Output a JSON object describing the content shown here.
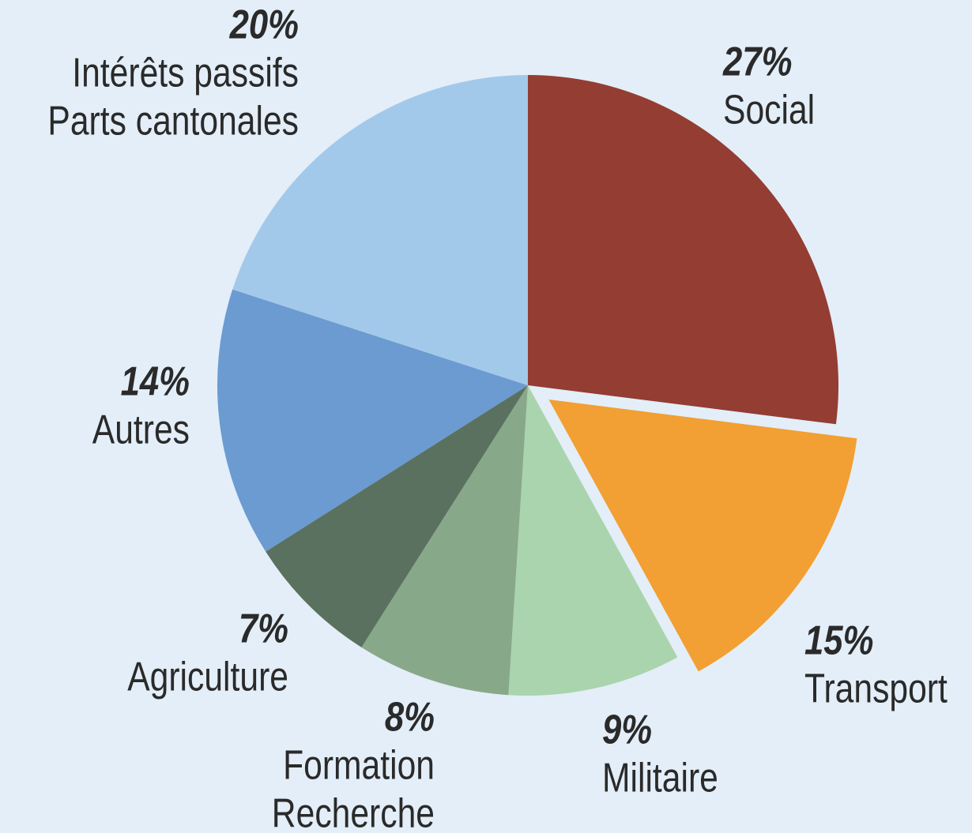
{
  "chart_data": {
    "type": "pie",
    "categories": [
      [
        "Social"
      ],
      [
        "Transport"
      ],
      [
        "Militaire"
      ],
      [
        "Formation",
        "Recherche"
      ],
      [
        "Agriculture"
      ],
      [
        "Autres"
      ],
      [
        "Intérêts passifs",
        "Parts cantonales"
      ]
    ],
    "values": [
      27,
      15,
      9,
      8,
      7,
      14,
      20
    ],
    "value_labels": [
      "27%",
      "15%",
      "9%",
      "8%",
      "7%",
      "14%",
      "20%"
    ],
    "colors": [
      "#943d33",
      "#f29f33",
      "#aad4ad",
      "#88a88a",
      "#5b7160",
      "#6b9bd1",
      "#a3c9ea"
    ],
    "explode": [
      false,
      true,
      false,
      false,
      false,
      false,
      false
    ]
  }
}
